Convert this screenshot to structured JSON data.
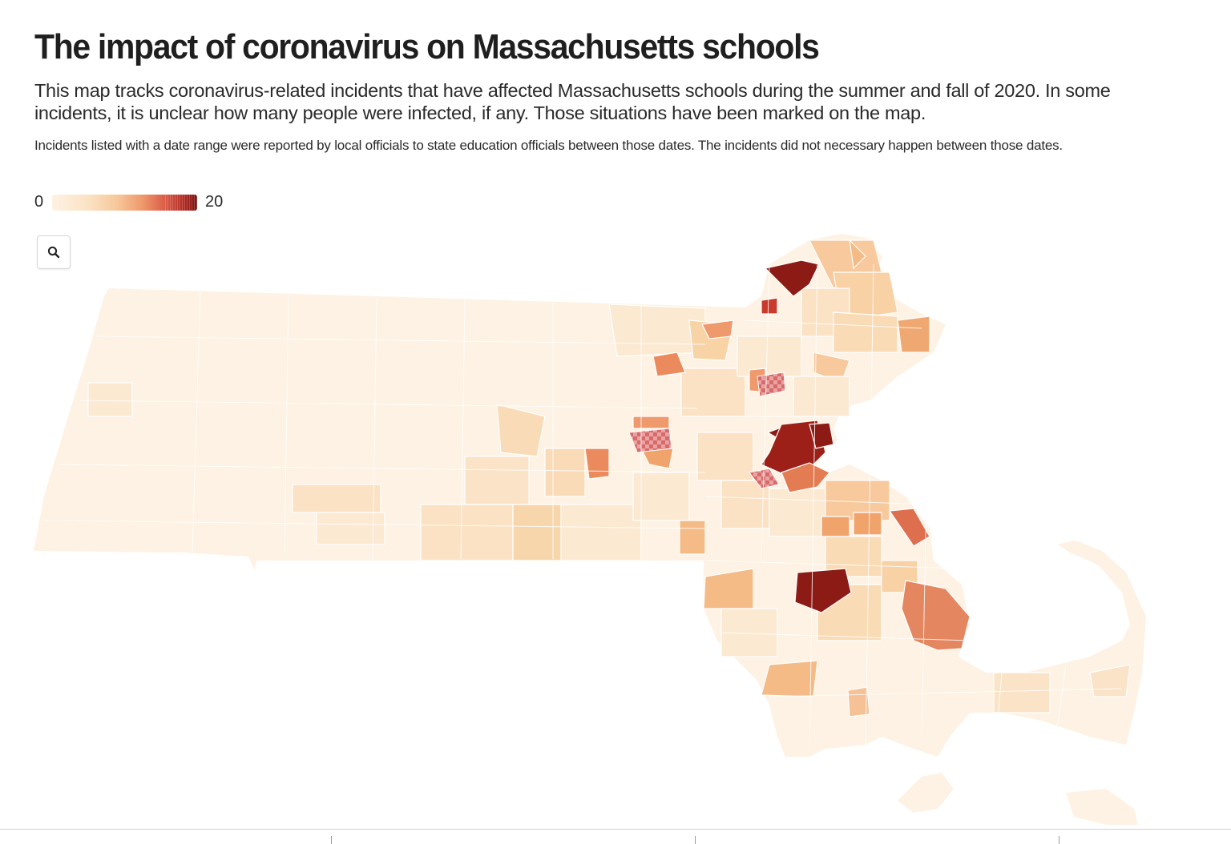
{
  "header": {
    "title": "The impact of coronavirus on Massachusetts schools",
    "subtitle": "This map tracks coronavirus-related incidents that have affected Massachusetts schools during the summer and fall of 2020. In some incidents, it is unclear how many people were infected, if any. Those situations have been marked on the map.",
    "note": "Incidents listed with a date range were reported by local officials to state education officials between those dates. The incidents did not necessary happen between those dates."
  },
  "legend": {
    "min_label": "0",
    "max_label": "20",
    "min": 0,
    "max": 20
  },
  "controls": {
    "zoom_icon": "search-icon"
  },
  "colors": {
    "scale": [
      "#fdf2e3",
      "#fbe2c4",
      "#f7c79a",
      "#ee9a6c",
      "#db5c46",
      "#b52e27",
      "#8c1a15"
    ],
    "unclear_pattern": "#d96a6a",
    "boundary": "#ffffff"
  },
  "map": {
    "region": "Massachusetts",
    "unit": "municipality"
  }
}
